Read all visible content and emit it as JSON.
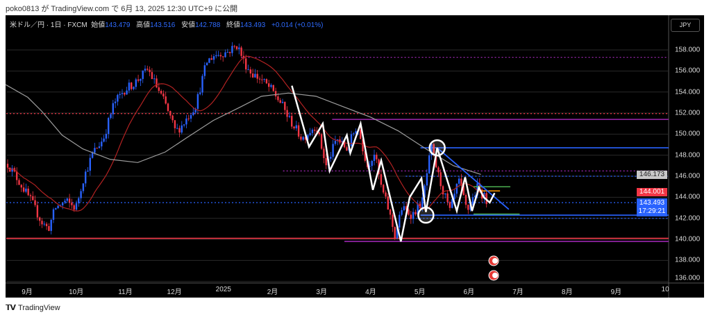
{
  "header": {
    "credit": "poko0813 が TradingView.com で 6月 13, 2025 12:30 UTC+9 に公開"
  },
  "legend": {
    "symbol": "米ドル／円 · 1日 · FXCM",
    "open_label": "始値",
    "open": "143.479",
    "high_label": "高値",
    "high": "143.516",
    "low_label": "安値",
    "low": "142.788",
    "close_label": "終値",
    "close": "143.493",
    "change": "+0.014 (+0.01%)"
  },
  "currency_button": "JPY",
  "price_axis": [
    "158.000",
    "156.000",
    "154.000",
    "152.000",
    "150.000",
    "148.000",
    "146.000",
    "144.000",
    "142.000",
    "140.000",
    "138.000",
    "136.000"
  ],
  "badges": {
    "sma75": "146.173",
    "sma20": "144.001",
    "last": "143.493",
    "countdown": "17:29:21"
  },
  "time_axis": [
    "9月",
    "10月",
    "11月",
    "12月",
    "2025",
    "2月",
    "3月",
    "4月",
    "5月",
    "6月",
    "7月",
    "8月",
    "9月",
    "10"
  ],
  "footer": {
    "brand": "TradingView",
    "logo_text": "TV"
  },
  "colors": {
    "up": "#2962ff",
    "down": "#f23645",
    "sma20": "#b22222",
    "sma75": "#9e9e9e",
    "zigzag": "#ffffff"
  },
  "chart_data": {
    "type": "candlestick",
    "title": "米ドル／円 · 1日 · FXCM",
    "x_unit": "months since 2024-09-01",
    "price_waypoints": [
      [
        -0.42,
        147.25
      ],
      [
        -0.28,
        146.27
      ],
      [
        0.07,
        143.63
      ],
      [
        0.28,
        141.65
      ],
      [
        0.42,
        141.0
      ],
      [
        0.56,
        142.97
      ],
      [
        0.77,
        143.63
      ],
      [
        0.98,
        142.97
      ],
      [
        1.12,
        145.6
      ],
      [
        1.33,
        148.24
      ],
      [
        1.54,
        149.56
      ],
      [
        1.75,
        152.86
      ],
      [
        1.96,
        154.18
      ],
      [
        2.17,
        154.84
      ],
      [
        2.45,
        156.16
      ],
      [
        2.59,
        154.84
      ],
      [
        2.8,
        152.86
      ],
      [
        3.01,
        150.22
      ],
      [
        3.15,
        150.88
      ],
      [
        3.43,
        152.86
      ],
      [
        3.64,
        156.81
      ],
      [
        3.78,
        157.47
      ],
      [
        4.06,
        157.8
      ],
      [
        4.27,
        158.46
      ],
      [
        4.41,
        156.81
      ],
      [
        4.55,
        155.82
      ],
      [
        4.76,
        155.16
      ],
      [
        4.97,
        154.18
      ],
      [
        5.17,
        152.86
      ],
      [
        5.31,
        151.54
      ],
      [
        5.59,
        149.56
      ],
      [
        5.87,
        150.88
      ],
      [
        6.08,
        146.93
      ],
      [
        6.29,
        149.56
      ],
      [
        6.5,
        148.57
      ],
      [
        6.71,
        150.88
      ],
      [
        6.92,
        146.93
      ],
      [
        7.06,
        148.24
      ],
      [
        7.2,
        144.95
      ],
      [
        7.34,
        142.97
      ],
      [
        7.48,
        140.33
      ],
      [
        7.62,
        142.97
      ],
      [
        7.83,
        142.31
      ],
      [
        8.04,
        143.63
      ],
      [
        8.22,
        148.77
      ],
      [
        8.39,
        145.6
      ],
      [
        8.6,
        142.64
      ],
      [
        8.78,
        145.6
      ],
      [
        8.95,
        142.64
      ],
      [
        9.16,
        144.95
      ],
      [
        9.37,
        143.49
      ]
    ],
    "sma75_waypoints": [
      [
        -0.45,
        154.7
      ],
      [
        0.0,
        153.5
      ],
      [
        0.28,
        152.2
      ],
      [
        0.7,
        149.9
      ],
      [
        1.12,
        148.6
      ],
      [
        1.68,
        147.6
      ],
      [
        2.24,
        147.3
      ],
      [
        2.8,
        148.3
      ],
      [
        3.22,
        149.6
      ],
      [
        3.78,
        151.3
      ],
      [
        4.34,
        152.6
      ],
      [
        4.76,
        153.6
      ],
      [
        5.31,
        153.9
      ],
      [
        5.87,
        153.6
      ],
      [
        6.43,
        152.6
      ],
      [
        6.99,
        151.6
      ],
      [
        7.55,
        150.3
      ],
      [
        8.11,
        148.6
      ],
      [
        8.67,
        147.0
      ],
      [
        9.23,
        146.17
      ]
    ],
    "horizontal_levels": [
      {
        "price": 157.3,
        "color": "#9c27b0",
        "style": "dotted",
        "from": 4.35
      },
      {
        "price": 151.95,
        "color": "#f23645",
        "style": "dotted",
        "from": -0.5
      },
      {
        "price": 151.4,
        "color": "#9c27b0",
        "style": "solid",
        "from": 6.2
      },
      {
        "price": 148.7,
        "color": "#2962ff",
        "style": "solid",
        "from": 8.0
      },
      {
        "price": 146.5,
        "color": "#9c27b0",
        "style": "dotted",
        "from": 5.2
      },
      {
        "price": 146.0,
        "color": "#2962ff",
        "style": "dotted",
        "from": 7.7
      },
      {
        "price": 143.49,
        "color": "#2962ff",
        "style": "dotted",
        "from": -0.5
      },
      {
        "price": 142.3,
        "color": "#2962ff",
        "style": "solid",
        "from": 8.0
      },
      {
        "price": 142.0,
        "color": "#2962ff",
        "style": "dotted",
        "from": 7.7
      },
      {
        "price": 140.1,
        "color": "#f23645",
        "style": "solid",
        "from": -0.5
      },
      {
        "price": 139.8,
        "color": "#9c27b0",
        "style": "solid",
        "from": 6.45
      }
    ],
    "zigzag": [
      [
        5.38,
        154.6
      ],
      [
        5.73,
        148.8
      ],
      [
        6.01,
        151.0
      ],
      [
        6.15,
        146.5
      ],
      [
        6.5,
        149.9
      ],
      [
        6.57,
        148.2
      ],
      [
        6.78,
        151.0
      ],
      [
        7.03,
        144.7
      ],
      [
        7.2,
        147.5
      ],
      [
        7.6,
        139.8
      ],
      [
        7.78,
        144.0
      ],
      [
        8.02,
        145.8
      ],
      [
        8.11,
        142.6
      ],
      [
        8.34,
        148.7
      ],
      [
        8.74,
        142.7
      ],
      [
        8.91,
        145.9
      ],
      [
        9.05,
        142.7
      ],
      [
        9.19,
        144.9
      ],
      [
        9.29,
        144.0
      ],
      [
        9.41,
        143.5
      ],
      [
        9.51,
        144.4
      ]
    ],
    "circles": [
      [
        8.34,
        148.7
      ],
      [
        8.11,
        142.3
      ]
    ],
    "trendline": [
      [
        8.34,
        148.7
      ],
      [
        9.8,
        142.85
      ]
    ],
    "short_levels": [
      {
        "price": 145.0,
        "color": "#4caf50",
        "from": 9.08,
        "to": 9.83
      },
      {
        "price": 142.4,
        "color": "#4caf50",
        "from": 9.08,
        "to": 10.02
      },
      {
        "price": 144.6,
        "color": "#ff9800",
        "from": 9.2,
        "to": 9.62
      }
    ],
    "yrange": [
      136,
      161
    ],
    "grid": true
  }
}
